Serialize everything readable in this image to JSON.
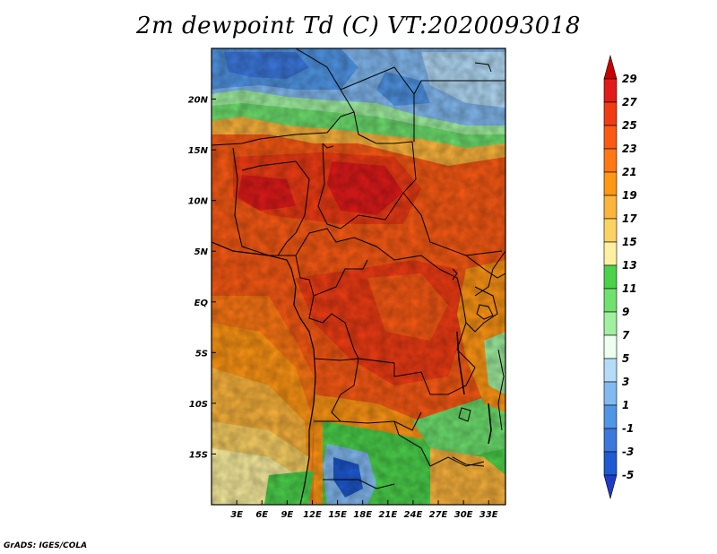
{
  "title": "2m dewpoint Td (C) VT:2020093018",
  "credit": "GrADS: IGES/COLA",
  "map": {
    "lon_range": [
      0,
      35
    ],
    "lat_range": [
      -20,
      25
    ],
    "lon_ticks": [
      {
        "value": 3,
        "label": "3E"
      },
      {
        "value": 6,
        "label": "6E"
      },
      {
        "value": 9,
        "label": "9E"
      },
      {
        "value": 12,
        "label": "12E"
      },
      {
        "value": 15,
        "label": "15E"
      },
      {
        "value": 18,
        "label": "18E"
      },
      {
        "value": 21,
        "label": "21E"
      },
      {
        "value": 24,
        "label": "24E"
      },
      {
        "value": 27,
        "label": "27E"
      },
      {
        "value": 30,
        "label": "30E"
      },
      {
        "value": 33,
        "label": "33E"
      }
    ],
    "lat_ticks": [
      {
        "value": 20,
        "label": "20N"
      },
      {
        "value": 15,
        "label": "15N"
      },
      {
        "value": 10,
        "label": "10N"
      },
      {
        "value": 5,
        "label": "5N"
      },
      {
        "value": 0,
        "label": "EQ"
      },
      {
        "value": -5,
        "label": "5S"
      },
      {
        "value": -10,
        "label": "10S"
      },
      {
        "value": -15,
        "label": "15S"
      }
    ]
  },
  "colorbar": {
    "levels": [
      "29",
      "27",
      "25",
      "23",
      "21",
      "19",
      "17",
      "15",
      "13",
      "11",
      "9",
      "7",
      "5",
      "3",
      "1",
      "-1",
      "-3",
      "-5"
    ],
    "colors": [
      "#c80000",
      "#e11a1a",
      "#f03c14",
      "#fa5a14",
      "#ff7814",
      "#ff9614",
      "#fbb43c",
      "#fbd264",
      "#fdf0a0",
      "#4bd24b",
      "#6ee16e",
      "#a0f0a0",
      "#ecfff0",
      "#b4dcf8",
      "#82b9f0",
      "#5096e6",
      "#3c78dc",
      "#1e5ad2",
      "#1e3cc8"
    ]
  }
}
